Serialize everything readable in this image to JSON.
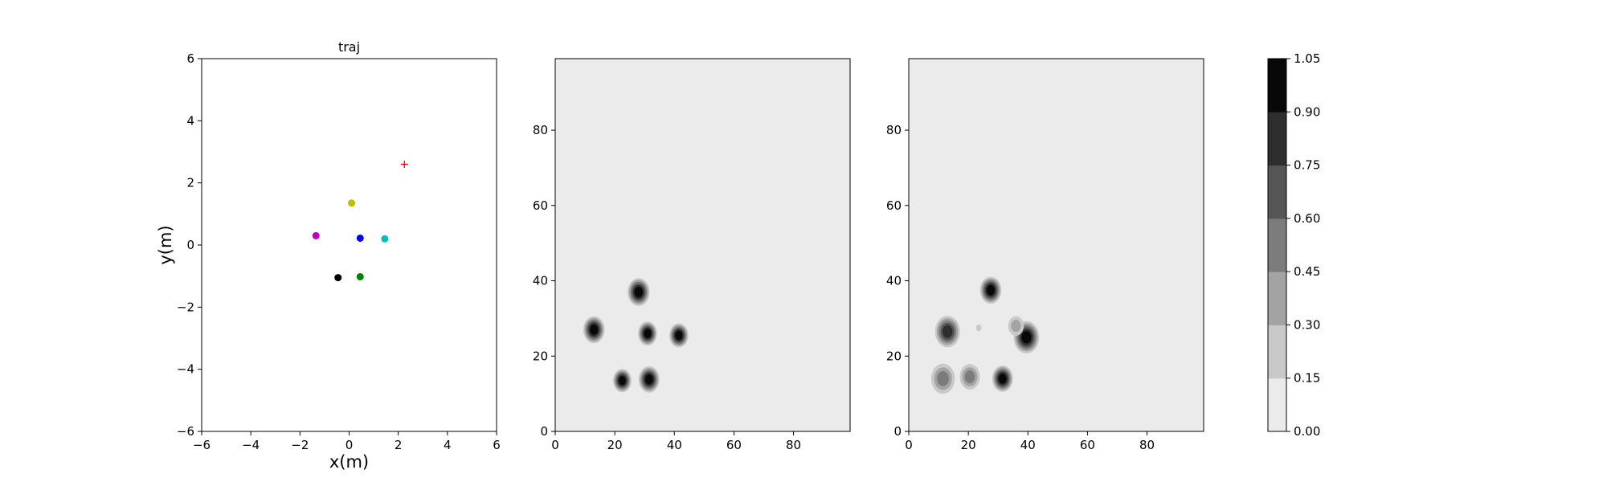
{
  "chart_data": [
    {
      "type": "scatter",
      "title": "traj",
      "xlabel": "x(m)",
      "ylabel": "y(m)",
      "xlim": [
        -6,
        6
      ],
      "ylim": [
        -6,
        6
      ],
      "xticks": [
        -6,
        -4,
        -2,
        0,
        2,
        4,
        6
      ],
      "yticks": [
        -6,
        -4,
        -2,
        0,
        2,
        4,
        6
      ],
      "grid": false,
      "points": [
        {
          "x": 0.1,
          "y": 1.35,
          "color": "#bfbf00",
          "marker": "circle"
        },
        {
          "x": -1.35,
          "y": 0.3,
          "color": "#bf00bf",
          "marker": "circle"
        },
        {
          "x": 0.45,
          "y": 0.22,
          "color": "#0000ff",
          "marker": "circle"
        },
        {
          "x": 1.45,
          "y": 0.2,
          "color": "#00bfbf",
          "marker": "circle"
        },
        {
          "x": -0.45,
          "y": -1.05,
          "color": "#000000",
          "marker": "circle"
        },
        {
          "x": 0.45,
          "y": -1.02,
          "color": "#008000",
          "marker": "circle"
        },
        {
          "x": 2.25,
          "y": 2.6,
          "color": "#ff0000",
          "marker": "plus"
        }
      ]
    },
    {
      "type": "heatmap",
      "title": "",
      "xlim": [
        0,
        99
      ],
      "ylim": [
        0,
        99
      ],
      "xticks": [
        0,
        20,
        40,
        60,
        80
      ],
      "yticks": [
        0,
        20,
        40,
        60,
        80
      ],
      "blobs": [
        {
          "x": 28,
          "y": 37,
          "r": 3.7,
          "value": 1.0
        },
        {
          "x": 13,
          "y": 27,
          "r": 3.6,
          "value": 1.0
        },
        {
          "x": 31,
          "y": 26,
          "r": 3.2,
          "value": 1.0
        },
        {
          "x": 41.5,
          "y": 25.5,
          "r": 3.2,
          "value": 1.0
        },
        {
          "x": 22.5,
          "y": 13.5,
          "r": 3.1,
          "value": 1.0
        },
        {
          "x": 31.5,
          "y": 13.8,
          "r": 3.5,
          "value": 1.0
        }
      ]
    },
    {
      "type": "heatmap",
      "title": "",
      "xlim": [
        0,
        99
      ],
      "ylim": [
        0,
        99
      ],
      "xticks": [
        0,
        20,
        40,
        60,
        80
      ],
      "yticks": [
        0,
        20,
        40,
        60,
        80
      ],
      "blobs": [
        {
          "x": 27.5,
          "y": 37.5,
          "r": 3.6,
          "value": 1.0
        },
        {
          "x": 13,
          "y": 26.5,
          "r": 4.2,
          "value": 0.85
        },
        {
          "x": 39.5,
          "y": 25,
          "r": 4.3,
          "value": 1.0
        },
        {
          "x": 36,
          "y": 28,
          "r": 2.6,
          "value": 0.35
        },
        {
          "x": 31.5,
          "y": 14,
          "r": 3.5,
          "value": 1.0
        },
        {
          "x": 11.5,
          "y": 14,
          "r": 4.0,
          "value": 0.45
        },
        {
          "x": 20.5,
          "y": 14.5,
          "r": 3.4,
          "value": 0.55
        },
        {
          "x": 23.5,
          "y": 27.5,
          "r": 0.9,
          "value": 0.2
        }
      ]
    }
  ],
  "colorbar": {
    "ticks": [
      "0.00",
      "0.15",
      "0.30",
      "0.45",
      "0.60",
      "0.75",
      "0.90",
      "1.05"
    ],
    "colors": [
      "#ebebeb",
      "#c9c9c9",
      "#a3a3a3",
      "#7c7c7c",
      "#555555",
      "#2e2e2e",
      "#080808"
    ]
  }
}
